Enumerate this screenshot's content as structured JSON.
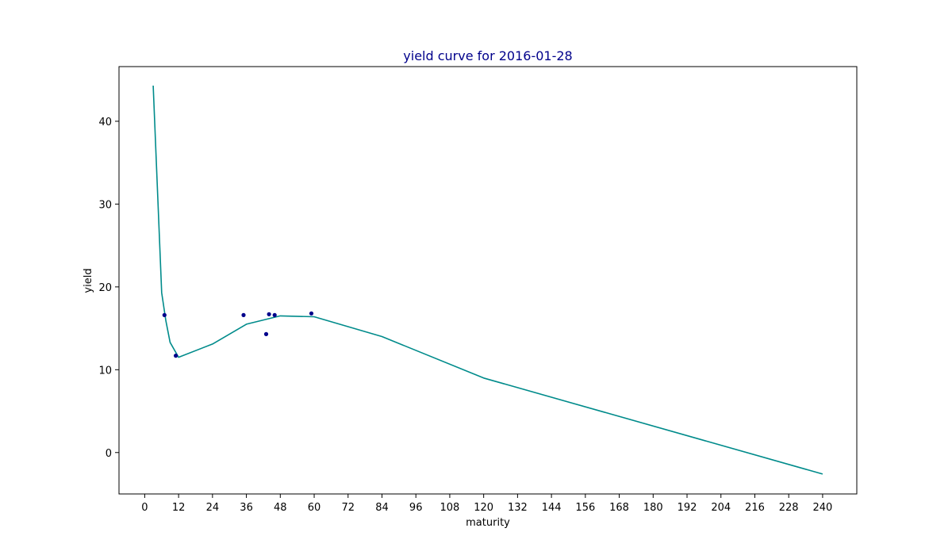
{
  "chart_data": {
    "type": "line",
    "title": "yield curve for 2016-01-28",
    "xlabel": "maturity",
    "ylabel": "yield",
    "xlim": [
      -9.1,
      252.1
    ],
    "ylim": [
      -5.0,
      46.6
    ],
    "x_ticks": [
      "0",
      "12",
      "24",
      "36",
      "48",
      "60",
      "72",
      "84",
      "96",
      "108",
      "120",
      "132",
      "144",
      "156",
      "168",
      "180",
      "192",
      "204",
      "216",
      "228",
      "240"
    ],
    "y_ticks": [
      "0",
      "10",
      "20",
      "30",
      "40"
    ],
    "grid": false,
    "legend": "none",
    "series": [
      {
        "kind": "line",
        "x": [
          3,
          6,
          7.5,
          9,
          12,
          24,
          36,
          48,
          60,
          84,
          120,
          240
        ],
        "y": [
          44.3,
          19.3,
          15.9,
          13.3,
          11.5,
          13.1,
          15.5,
          16.5,
          16.4,
          14.0,
          9.0,
          -2.6
        ]
      },
      {
        "kind": "scatter",
        "x": [
          7,
          11,
          35,
          43,
          44,
          46,
          59
        ],
        "y": [
          16.6,
          11.7,
          16.6,
          14.3,
          16.7,
          16.6,
          16.8
        ]
      }
    ],
    "colors": {
      "line": "#008b8b",
      "points": "#00008b",
      "title": "#00008b"
    }
  }
}
